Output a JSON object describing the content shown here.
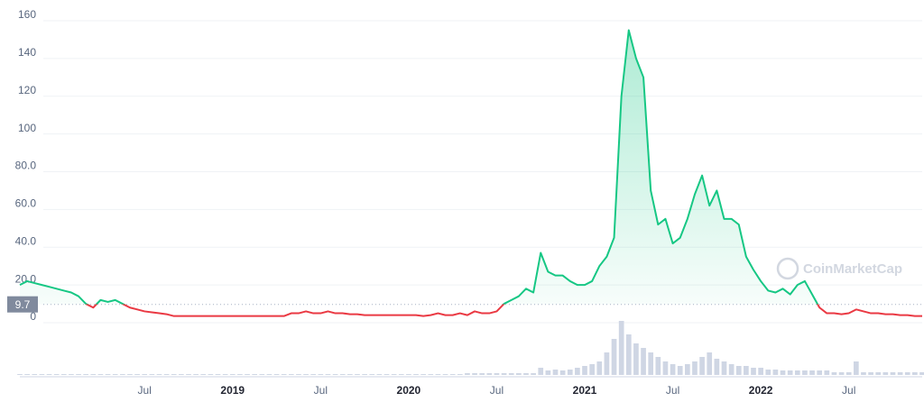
{
  "chart_data": {
    "type": "line",
    "categories": [
      null,
      null,
      null,
      null,
      null,
      null,
      null,
      null,
      null,
      null,
      null,
      null,
      null,
      null,
      null,
      null,
      null,
      "Jul",
      null,
      null,
      null,
      null,
      null,
      null,
      null,
      null,
      null,
      null,
      null,
      "2019",
      null,
      null,
      null,
      null,
      null,
      null,
      null,
      null,
      null,
      null,
      null,
      "Jul",
      null,
      null,
      null,
      null,
      null,
      null,
      null,
      null,
      null,
      null,
      null,
      "2020",
      null,
      null,
      null,
      null,
      null,
      null,
      null,
      null,
      null,
      null,
      null,
      "Jul",
      null,
      null,
      null,
      null,
      null,
      null,
      null,
      null,
      null,
      null,
      null,
      "2021",
      null,
      null,
      null,
      null,
      null,
      null,
      null,
      null,
      null,
      null,
      null,
      "Jul",
      null,
      null,
      null,
      null,
      null,
      null,
      null,
      null,
      null,
      null,
      null,
      "2022",
      null,
      null,
      null,
      null,
      null,
      null,
      null,
      null,
      null,
      null,
      null,
      "Jul",
      null,
      null,
      null,
      null,
      null,
      null,
      null,
      null,
      null,
      null
    ],
    "values": [
      20,
      22,
      21,
      20,
      19,
      18,
      17,
      16,
      14,
      10,
      8,
      12,
      11,
      12,
      10,
      8,
      7,
      6,
      5.5,
      5,
      4.5,
      3.5,
      3.5,
      3.5,
      3.5,
      3.5,
      3.5,
      3.5,
      3.5,
      3.5,
      3.5,
      3.5,
      3.5,
      3.5,
      3.5,
      3.5,
      3.5,
      5,
      5,
      6,
      5,
      5,
      6,
      5,
      5,
      4.5,
      4.5,
      4,
      4,
      4,
      4,
      4,
      4,
      4,
      4,
      3.5,
      4,
      5,
      4,
      4,
      5,
      4,
      6,
      5,
      5,
      6,
      10,
      12,
      14,
      18,
      16,
      37,
      27,
      25,
      25,
      22,
      20,
      20,
      22,
      30,
      35,
      45,
      120,
      155,
      140,
      130,
      70,
      52,
      55,
      42,
      45,
      55,
      68,
      78,
      62,
      70,
      55,
      55,
      52,
      35,
      28,
      22,
      17,
      16,
      18,
      15,
      20,
      22,
      15,
      8,
      5,
      5,
      4.5,
      5,
      7,
      6,
      5,
      5,
      4.5,
      4.5,
      4,
      4,
      3.5,
      3.5
    ],
    "color_up": "#16c784",
    "color_down": "#ea3943",
    "reference_value": 9.7,
    "ylim": [
      0,
      160
    ],
    "yticks": [
      0,
      {
        "value": 20,
        "label": "20.0"
      },
      {
        "value": 40,
        "label": "40.0"
      },
      {
        "value": 60,
        "label": "60.0"
      },
      {
        "value": 80,
        "label": "80.0"
      },
      100,
      120,
      140,
      160
    ],
    "grid": true,
    "volume": {
      "color": "#cfd6e4",
      "ylim": [
        0,
        60
      ],
      "values": [
        1,
        1,
        1,
        1,
        1,
        1,
        1,
        1,
        1,
        1,
        1,
        1,
        1,
        1,
        1,
        1,
        1,
        1,
        1,
        1,
        1,
        1,
        1,
        1,
        1,
        1,
        1,
        1,
        1,
        1,
        1,
        1,
        1,
        1,
        1,
        1,
        1,
        1,
        1,
        1,
        1,
        1,
        1,
        1,
        1,
        1,
        1,
        1,
        1,
        1,
        1,
        1,
        1,
        1,
        1,
        1,
        1,
        1,
        1,
        1,
        1,
        2,
        2,
        2,
        2,
        2,
        2,
        2,
        2,
        2,
        2,
        8,
        5,
        6,
        5,
        6,
        8,
        10,
        12,
        15,
        25,
        40,
        60,
        45,
        35,
        30,
        25,
        20,
        15,
        12,
        10,
        12,
        15,
        20,
        25,
        18,
        15,
        12,
        10,
        10,
        8,
        8,
        6,
        6,
        5,
        5,
        5,
        5,
        5,
        5,
        5,
        3,
        3,
        3,
        15,
        3,
        3,
        3,
        3,
        3,
        3,
        3,
        3,
        3
      ]
    },
    "watermark": "CoinMarketCap"
  }
}
